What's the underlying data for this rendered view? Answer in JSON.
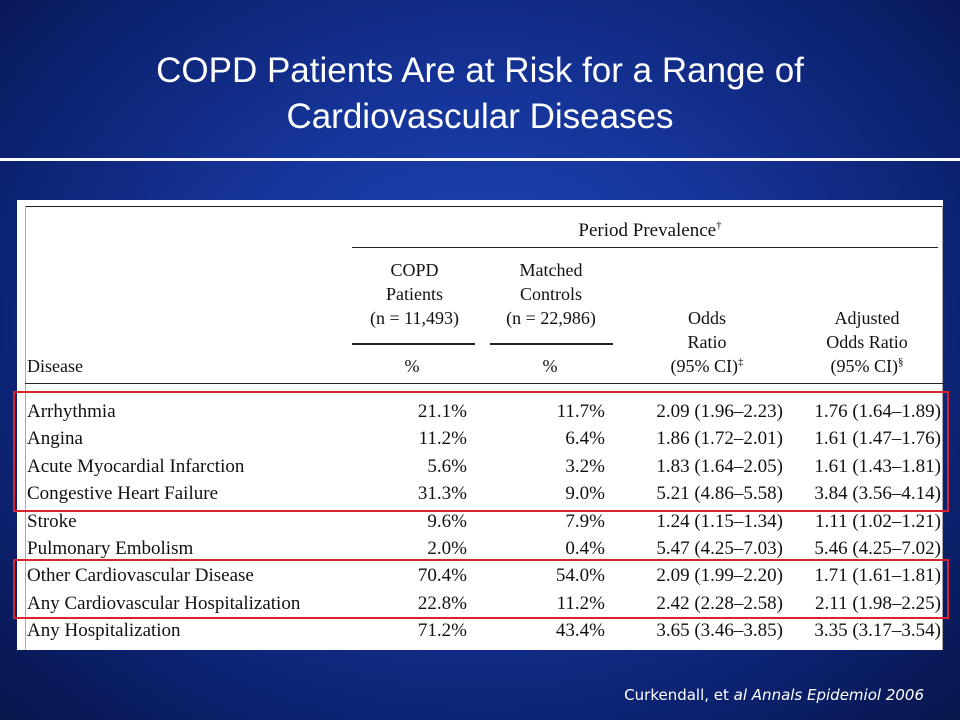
{
  "slide": {
    "title_line1": "COPD Patients Are at Risk for a Range of",
    "title_line2": "Cardiovascular Diseases"
  },
  "table": {
    "group_header": "Period Prevalence",
    "group_header_mark": "†",
    "columns": {
      "disease": "Disease",
      "copd": {
        "line1": "COPD",
        "line2": "Patients",
        "line3": "(n = 11,493)",
        "unit": "%"
      },
      "controls": {
        "line1": "Matched",
        "line2": "Controls",
        "line3": "(n = 22,986)",
        "unit": "%"
      },
      "odds": {
        "line1": "Odds",
        "line2": "Ratio",
        "line3": "(95% CI)",
        "mark": "‡"
      },
      "adjusted": {
        "line1": "Adjusted",
        "line2": "Odds Ratio",
        "line3": "(95% CI)",
        "mark": "§"
      }
    },
    "rows": [
      {
        "disease": "Arrhythmia",
        "copd": "21.1%",
        "controls": "11.7%",
        "odds_ratio": "2.09 (1.96–2.23)",
        "adjusted_odds_ratio": "1.76 (1.64–1.89)"
      },
      {
        "disease": "Angina",
        "copd": "11.2%",
        "controls": "6.4%",
        "odds_ratio": "1.86 (1.72–2.01)",
        "adjusted_odds_ratio": "1.61 (1.47–1.76)"
      },
      {
        "disease": "Acute Myocardial Infarction",
        "copd": "5.6%",
        "controls": "3.2%",
        "odds_ratio": "1.83 (1.64–2.05)",
        "adjusted_odds_ratio": "1.61 (1.43–1.81)"
      },
      {
        "disease": "Congestive Heart Failure",
        "copd": "31.3%",
        "controls": "9.0%",
        "odds_ratio": "5.21 (4.86–5.58)",
        "adjusted_odds_ratio": "3.84 (3.56–4.14)"
      },
      {
        "disease": "Stroke",
        "copd": "9.6%",
        "controls": "7.9%",
        "odds_ratio": "1.24 (1.15–1.34)",
        "adjusted_odds_ratio": "1.11 (1.02–1.21)"
      },
      {
        "disease": "Pulmonary Embolism",
        "copd": "2.0%",
        "controls": "0.4%",
        "odds_ratio": "5.47 (4.25–7.03)",
        "adjusted_odds_ratio": "5.46 (4.25–7.02)"
      },
      {
        "disease": "Other Cardiovascular Disease",
        "copd": "70.4%",
        "controls": "54.0%",
        "odds_ratio": "2.09 (1.99–2.20)",
        "adjusted_odds_ratio": "1.71 (1.61–1.81)"
      },
      {
        "disease": "Any Cardiovascular Hospitalization",
        "copd": "22.8%",
        "controls": "11.2%",
        "odds_ratio": "2.42 (2.28–2.58)",
        "adjusted_odds_ratio": "2.11 (1.98–2.25)"
      },
      {
        "disease": "Any Hospitalization",
        "copd": "71.2%",
        "controls": "43.4%",
        "odds_ratio": "3.65 (3.46–3.85)",
        "adjusted_odds_ratio": "3.35 (3.17–3.54)"
      }
    ]
  },
  "citation": {
    "prefix": "Curkendall, et ",
    "italic": "al Annals Epidemiol 2006"
  },
  "colors": {
    "highlight": "#d9232e",
    "background": "#16359a"
  }
}
